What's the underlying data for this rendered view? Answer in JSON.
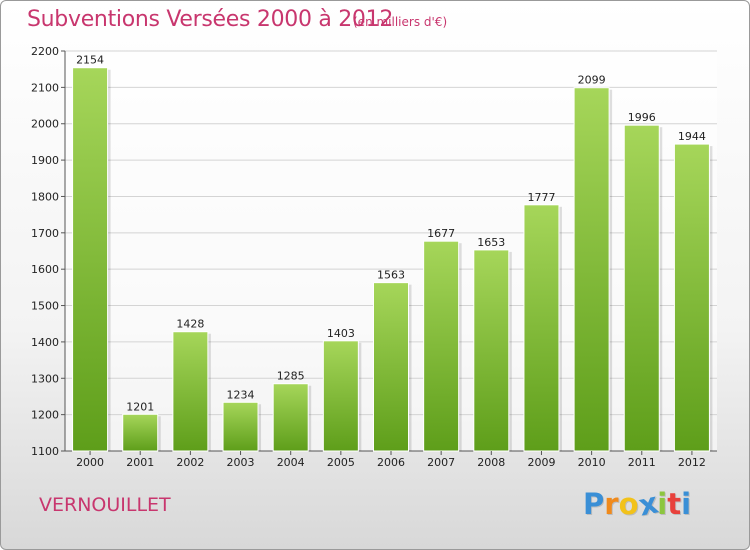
{
  "header": {
    "title": "Subventions Versées 2000 à 2012",
    "subtitle": "(en milliers d'€)"
  },
  "footer": {
    "commune": "VERNOUILLET",
    "logo_letters": [
      "P",
      "r",
      "o",
      "x",
      "i",
      "t",
      "i"
    ],
    "logo_colors": [
      "#3a8fd6",
      "#f08a1c",
      "#f2c21a",
      "#3a8fd6",
      "#8cc63f",
      "#e8413c",
      "#3a8fd6"
    ]
  },
  "colors": {
    "bar_light": "#a6d65a",
    "bar_dark": "#5e9e1a",
    "grid": "#d4d4d4",
    "axis_text": "#222222",
    "title": "#c8366e"
  },
  "chart_data": {
    "type": "bar",
    "title": "Subventions Versées 2000 à 2012",
    "subtitle": "(en milliers d'€)",
    "categories": [
      "2000",
      "2001",
      "2002",
      "2003",
      "2004",
      "2005",
      "2006",
      "2007",
      "2008",
      "2009",
      "2010",
      "2011",
      "2012"
    ],
    "values": [
      2154,
      1201,
      1428,
      1234,
      1285,
      1403,
      1563,
      1677,
      1653,
      1777,
      2099,
      1996,
      1944
    ],
    "ylim": [
      1100,
      2200
    ],
    "yticks": [
      1100,
      1200,
      1300,
      1400,
      1500,
      1600,
      1700,
      1800,
      1900,
      2000,
      2100,
      2200
    ],
    "grid": true,
    "data_labels": true
  }
}
